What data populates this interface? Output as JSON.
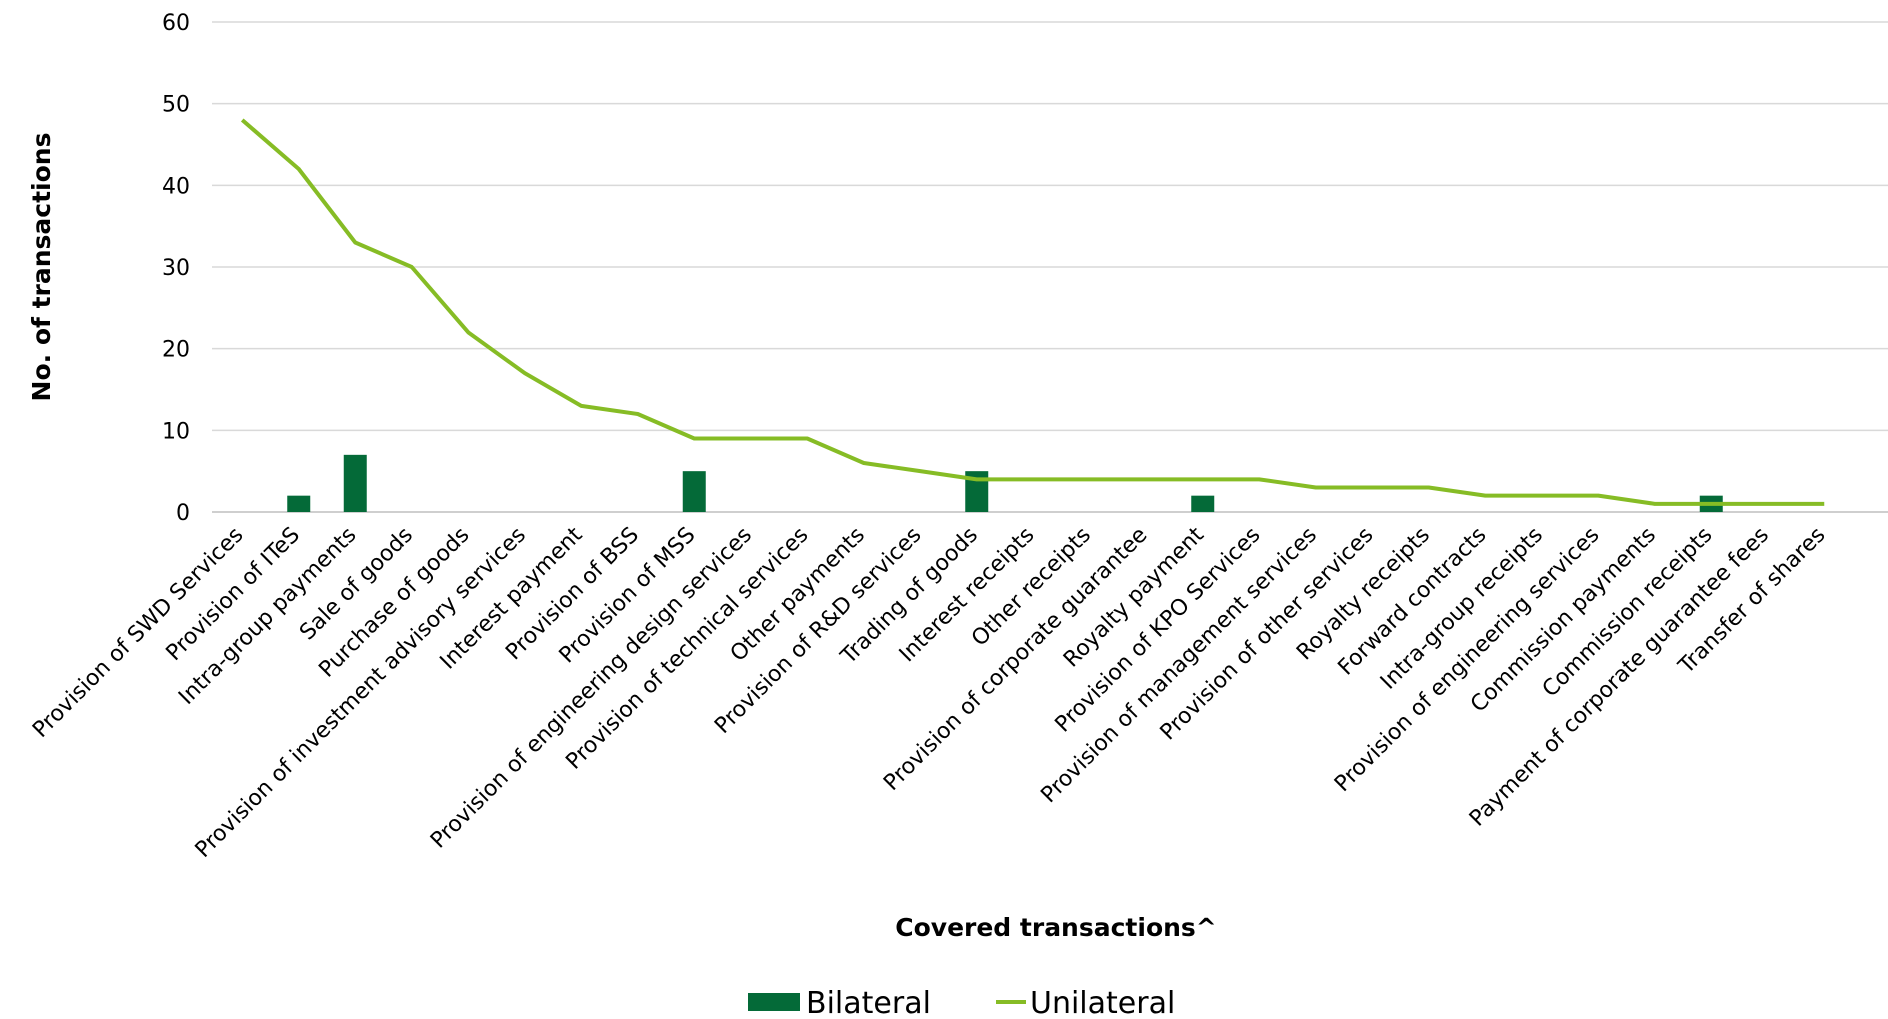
{
  "chart_data": {
    "type": "bar+line",
    "title": "",
    "xlabel": "Covered transactions^",
    "ylabel": "No. of transactions",
    "ylim": [
      0,
      60
    ],
    "yticks": [
      0,
      10,
      20,
      30,
      40,
      50,
      60
    ],
    "grid": "horizontal",
    "legend_position": "bottom",
    "categories": [
      "Provision of SWD Services",
      "Provision of ITeS",
      "Intra-group payments",
      "Sale of goods",
      "Purchase of goods",
      "Provision of investment advisory services",
      "Interest payment",
      "Provision of BSS",
      "Provision of MSS",
      "Provision of engineering design services",
      "Provision of technical services",
      "Other payments",
      "Provision of R&D services",
      "Trading of goods",
      "Interest receipts",
      "Other receipts",
      "Provision of corporate guarantee",
      "Royalty payment",
      "Provision of KPO Services",
      "Provision of management services",
      "Provision of other services",
      "Royalty receipts",
      "Forward contracts",
      "Intra-group receipts",
      "Provision of engineering services",
      "Commission payments",
      "Commission receipts",
      "Payment of corporate guarantee fees",
      "Transfer of shares"
    ],
    "series": [
      {
        "name": "Bilateral",
        "type": "bar",
        "color": "#046a38",
        "values": [
          0,
          2,
          7,
          0,
          0,
          0,
          0,
          0,
          5,
          0,
          0,
          0,
          0,
          5,
          0,
          0,
          0,
          2,
          0,
          0,
          0,
          0,
          0,
          0,
          0,
          0,
          2,
          0,
          0
        ]
      },
      {
        "name": "Unilateral",
        "type": "line",
        "color": "#86bc25",
        "values": [
          48,
          42,
          33,
          30,
          22,
          17,
          13,
          12,
          9,
          9,
          9,
          6,
          5,
          4,
          4,
          4,
          4,
          4,
          4,
          3,
          3,
          3,
          2,
          2,
          2,
          1,
          1,
          1,
          1
        ]
      }
    ]
  }
}
